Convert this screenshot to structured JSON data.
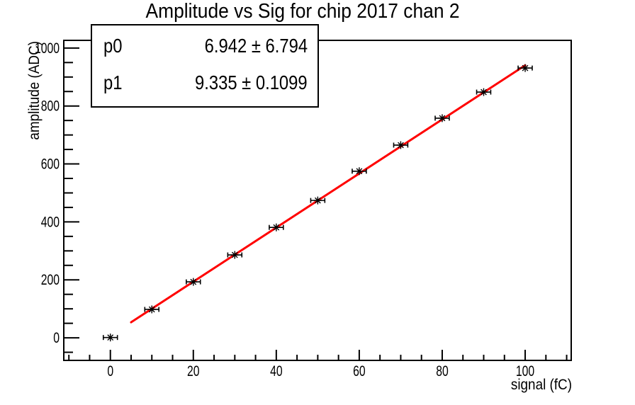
{
  "chart_data": {
    "type": "scatter",
    "title": "Amplitude vs Sig for chip 2017 chan 2",
    "xlabel": "signal (fC)",
    "ylabel": "amplitude (ADC)",
    "x": [
      0,
      10,
      20,
      30,
      40,
      50,
      60,
      70,
      80,
      90,
      100
    ],
    "y": [
      1,
      98,
      193,
      286,
      381,
      474,
      575,
      665,
      758,
      848,
      931
    ],
    "xerr": 1.7,
    "fit": {
      "name": "linear",
      "p0": 6.942,
      "p0_err": 6.794,
      "p1": 9.335,
      "p1_err": 0.1099,
      "x_min": 5,
      "x_max": 100,
      "color": "#ff0000"
    },
    "stats": {
      "rows": [
        {
          "label": "p0",
          "value": "6.942 ± 6.794"
        },
        {
          "label": "p1",
          "value": "9.335 ± 0.1099"
        }
      ]
    },
    "axes": {
      "xlim": [
        -11.4,
        111.1
      ],
      "ylim": [
        -78,
        1029
      ],
      "x_major_ticks": [
        0,
        20,
        40,
        60,
        80,
        100
      ],
      "x_minor_step": 5,
      "y_major_ticks": [
        0,
        200,
        400,
        600,
        800,
        1000
      ],
      "y_minor_step": 50,
      "grid": false,
      "legend": "none",
      "marker_style": "asterisk-with-x-error-bars",
      "marker_color": "#000000",
      "frame_color": "#000000",
      "background": "#ffffff"
    }
  }
}
